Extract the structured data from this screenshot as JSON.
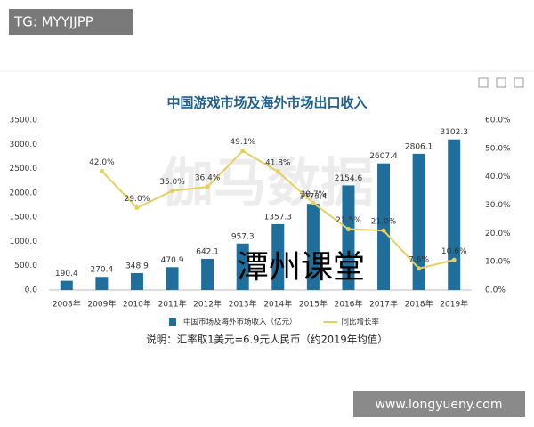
{
  "overlays": {
    "top_left": "TG: MYYJJPP",
    "bottom_right": "www.longyueny.com",
    "center": "潭州课堂",
    "watermark": "伽马数据"
  },
  "chart_data": {
    "type": "bar",
    "title": "中国游戏市场及海外市场出口收入",
    "note": "说明：汇率取1美元=6.9元人民币（约2019年均值）",
    "categories": [
      "2008年",
      "2009年",
      "2010年",
      "2011年",
      "2012年",
      "2013年",
      "2014年",
      "2015年",
      "2016年",
      "2017年",
      "2018年",
      "2019年"
    ],
    "series": [
      {
        "name": "中国市场及海外市场收入（亿元）",
        "type": "bar",
        "color": "#1f6e9c",
        "values": [
          190.4,
          270.4,
          348.9,
          470.9,
          642.1,
          957.3,
          1357.3,
          1773.4,
          2154.6,
          2607.4,
          2806.1,
          3102.3
        ]
      },
      {
        "name": "同比增长率",
        "type": "line",
        "axis": "y2",
        "color": "#e6cf5e",
        "values": [
          null,
          42.0,
          29.0,
          35.0,
          36.4,
          49.1,
          41.8,
          30.7,
          21.5,
          21.0,
          7.6,
          10.6
        ],
        "value_labels": [
          null,
          "42.0%",
          "29.0%",
          "35.0%",
          "36.4%",
          "49.1%",
          "41.8%",
          "30.7%",
          "21.5%",
          "21.0%",
          "7.6%",
          "10.6%"
        ]
      }
    ],
    "ylim": [
      0,
      3500
    ],
    "yticks": [
      {
        "value": 0,
        "label": "0.0"
      },
      {
        "value": 500,
        "label": "500.0"
      },
      {
        "value": 1000,
        "label": "1000.0"
      },
      {
        "value": 1500,
        "label": "1500.0"
      },
      {
        "value": 2000,
        "label": "2000.0"
      },
      {
        "value": 2500,
        "label": "2500.0"
      },
      {
        "value": 3000,
        "label": "3000.0"
      },
      {
        "value": 3500,
        "label": "3500.0"
      }
    ],
    "y2lim": [
      0,
      60
    ],
    "y2ticks": [
      {
        "value": 0,
        "label": "0.0%"
      },
      {
        "value": 10,
        "label": "10.0%"
      },
      {
        "value": 20,
        "label": "20.0%"
      },
      {
        "value": 30,
        "label": "30.0%"
      },
      {
        "value": 40,
        "label": "40.0%"
      },
      {
        "value": 50,
        "label": "50.0%"
      },
      {
        "value": 60,
        "label": "60.0%"
      }
    ],
    "legend": "bottom"
  }
}
